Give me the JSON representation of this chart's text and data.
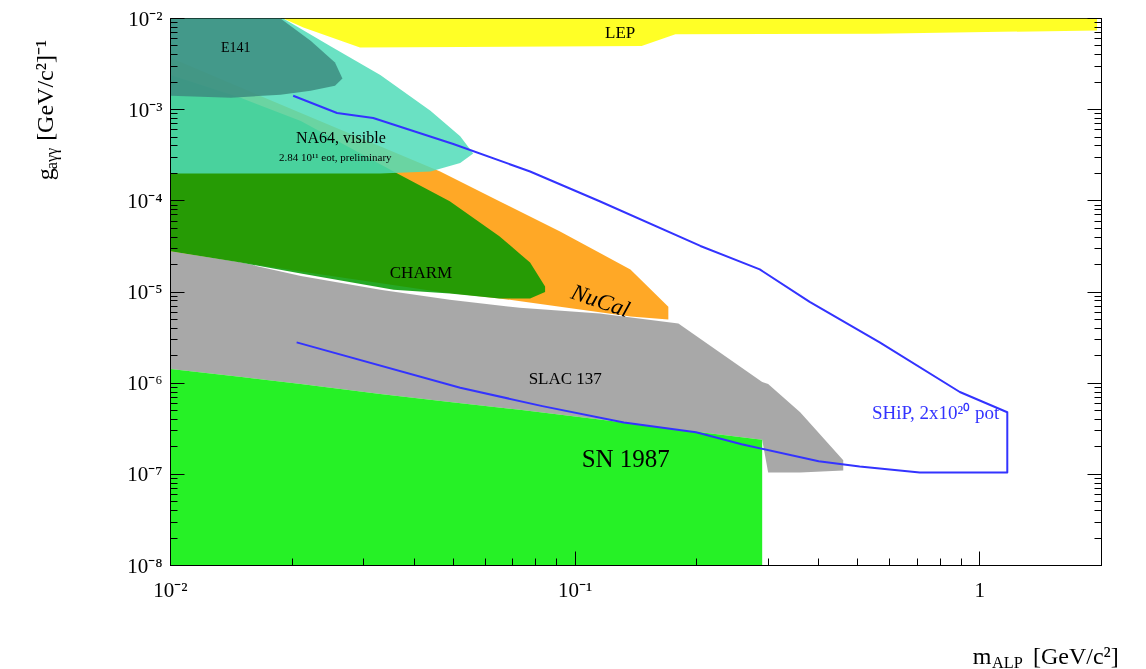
{
  "chart_data": {
    "type": "area",
    "log": "xy",
    "xlabel": "m$_{ALP}$ [GeV/c²]",
    "ylabel": "g$_{aγγ}$ [GeV/c²]⁻¹",
    "xlim": [
      0.01,
      2
    ],
    "ylim": [
      1e-08,
      0.01
    ],
    "xticks": [
      {
        "value": 0.01,
        "label": "10⁻²"
      },
      {
        "value": 0.1,
        "label": "10⁻¹"
      },
      1
    ],
    "yticks": [
      {
        "value": 1e-08,
        "label": "10⁻⁸"
      },
      {
        "value": 1e-07,
        "label": "10⁻⁷"
      },
      {
        "value": 1e-06,
        "label": "10⁻⁶"
      },
      {
        "value": 1e-05,
        "label": "10⁻⁵"
      },
      {
        "value": 0.0001,
        "label": "10⁻⁴"
      },
      {
        "value": 0.001,
        "label": "10⁻³"
      },
      {
        "value": 0.01,
        "label": "10⁻²"
      }
    ],
    "series": [
      {
        "color": "#999999",
        "x": [
          0.01,
          0.015,
          0.021,
          0.033,
          0.049,
          0.073,
          0.115,
          0.18,
          0.29,
          0.3,
          0.36,
          0.46,
          0.46,
          0.36,
          0.3,
          0.29,
          0.18,
          0.115,
          0.073,
          0.049,
          0.033,
          0.021,
          0.015,
          0.01
        ],
        "values": [
          2.8e-05,
          2.1e-05,
          1.5e-05,
          1.06e-05,
          8.2e-06,
          6.7e-06,
          5.8e-06,
          4.5e-06,
          1.03e-06,
          9.8e-07,
          4.8e-07,
          1.43e-07,
          1.1e-07,
          1.05e-07,
          1.05e-07,
          2.4e-07,
          3.1e-07,
          4e-07,
          5.1e-07,
          6.2e-07,
          7.6e-07,
          9.8e-07,
          1.17e-06,
          1.43e-06
        ]
      },
      {
        "color": "#00ee00",
        "x": [
          0.01,
          0.015,
          0.021,
          0.033,
          0.049,
          0.073,
          0.115,
          0.18,
          0.29,
          0.29,
          0.01
        ],
        "values": [
          1.43e-06,
          1.17e-06,
          9.8e-07,
          7.6e-07,
          6.2e-07,
          5.1e-07,
          4e-07,
          3.1e-07,
          2.4e-07,
          1e-08,
          1e-08
        ]
      },
      {
        "color": "#ff9900",
        "x": [
          0.01,
          0.021,
          0.0464,
          0.065,
          0.0918,
          0.137,
          0.17,
          0.17,
          0.137,
          0.0918,
          0.065,
          0.0464,
          0.021,
          0.01
        ],
        "values": [
          0.0037,
          0.00092,
          0.00021,
          9.9e-05,
          4.6e-05,
          1.77e-05,
          6.9e-06,
          5e-06,
          5.4e-06,
          6.9e-06,
          8.5e-06,
          1e-05,
          1.68e-05,
          2.8e-05
        ]
      },
      {
        "color": "#009900",
        "x": [
          0.01,
          0.0149,
          0.021,
          0.0356,
          0.049,
          0.065,
          0.0774,
          0.0843,
          0.0843,
          0.0774,
          0.065,
          0.049,
          0.0356,
          0.021,
          0.0149,
          0.01
        ],
        "values": [
          0.0024,
          0.00135,
          0.00075,
          0.00021,
          9.9e-05,
          4.1e-05,
          2.1e-05,
          1.15e-05,
          1e-05,
          8.5e-06,
          8.5e-06,
          9.6e-06,
          1.06e-05,
          1.6e-05,
          2.1e-05,
          2.8e-05
        ]
      },
      {
        "color": "#50dcb8",
        "x": [
          0.01,
          0.019,
          0.0248,
          0.033,
          0.0439,
          0.052,
          0.056,
          0.052,
          0.0439,
          0.033,
          0.01
        ],
        "values": [
          0.01,
          0.01,
          0.005,
          0.0024,
          0.00097,
          0.00051,
          0.00033,
          0.00026,
          0.00021,
          0.0002,
          0.0002
        ]
      },
      {
        "color": "#3c8c80",
        "x": [
          0.01,
          0.0187,
          0.0222,
          0.0255,
          0.0266,
          0.0255,
          0.0222,
          0.0187,
          0.0141,
          0.01
        ],
        "values": [
          0.01,
          0.01,
          0.0057,
          0.0033,
          0.0022,
          0.00183,
          0.00161,
          0.00146,
          0.00135,
          0.00142
        ]
      },
      {
        "color": "#ffff00",
        "x": [
          0.019,
          1.95,
          1.95,
          0.554,
          0.177,
          0.146,
          0.0294,
          0.0213
        ],
        "values": [
          0.01,
          0.01,
          0.0074,
          0.0068,
          0.0067,
          0.005,
          0.0048,
          0.00796
        ]
      },
      {
        "type": "line",
        "name": "SHiP, 2x10²⁰ pot",
        "color": "#3333ff",
        "x": [
          0.0201,
          0.0258,
          0.0317,
          0.05,
          0.0774,
          0.115,
          0.204,
          0.286,
          0.38,
          0.566,
          0.893,
          1.17,
          1.17,
          0.711,
          0.505,
          0.4,
          0.258,
          0.199,
          0.132,
          0.083,
          0.052,
          0.0205
        ],
        "values": [
          0.00142,
          0.00092,
          0.00081,
          0.00042,
          0.00021,
          9.9e-05,
          3.2e-05,
          1.77e-05,
          7.8e-06,
          2.8e-06,
          8e-07,
          4.8e-07,
          1.05e-07,
          1.05e-07,
          1.22e-07,
          1.39e-07,
          2.14e-07,
          2.9e-07,
          3.7e-07,
          5.6e-07,
          8.9e-07,
          2.8e-06
        ]
      }
    ],
    "annotations": [
      "LEP",
      "E141",
      "NA64, visible",
      "2.84 10¹¹ eot, preliminary",
      "CHARM",
      "NuCal",
      "SLAC 137",
      "SN 1987"
    ]
  }
}
